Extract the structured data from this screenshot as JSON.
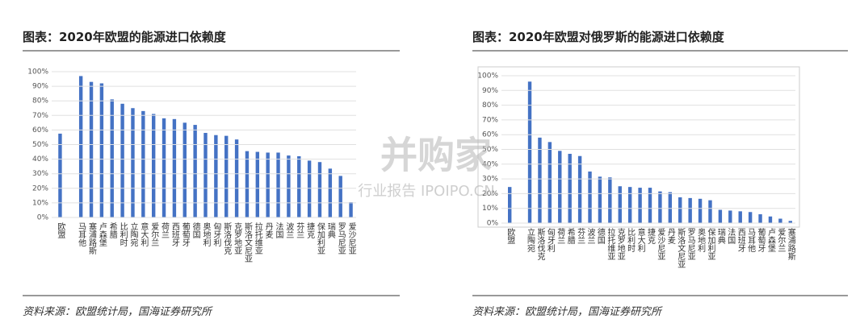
{
  "chart_data": [
    {
      "type": "bar",
      "title": "图表：2020年欧盟的能源进口依赖度",
      "source": "资料来源：欧盟统计局，国海证券研究所",
      "categories": [
        "欧盟",
        null,
        "马耳他",
        "塞浦路斯",
        "卢森堡",
        "希腊",
        "比利时",
        "立陶宛",
        "意大利",
        "爱尔兰",
        "荷兰",
        "西班牙",
        "葡萄牙",
        "德国",
        "奥地利",
        "匈牙利",
        "斯洛伐克",
        "克罗地亚",
        "斯洛文尼亚",
        "拉托维亚",
        "丹麦",
        "法国",
        "波兰",
        "芬兰",
        "捷克",
        "保加利亚",
        "瑞典",
        "罗马尼亚",
        "爱沙尼亚"
      ],
      "values": [
        57.5,
        null,
        97,
        93,
        92,
        81,
        78,
        75,
        73,
        71,
        68,
        67.5,
        65,
        63.5,
        58,
        56.5,
        56,
        53.5,
        45.5,
        45,
        44.5,
        44.5,
        42.5,
        42,
        39,
        38,
        33.5,
        28.5,
        10.5
      ],
      "color": "#4472c4",
      "ylim": [
        0,
        100
      ],
      "yticks": [
        {
          "value": 0,
          "label": "0%"
        },
        {
          "value": 10,
          "label": "10%"
        },
        {
          "value": 20,
          "label": "20%"
        },
        {
          "value": 30,
          "label": "30%"
        },
        {
          "value": 40,
          "label": "40%"
        },
        {
          "value": 50,
          "label": "50%"
        },
        {
          "value": 60,
          "label": "60%"
        },
        {
          "value": 70,
          "label": "70%"
        },
        {
          "value": 80,
          "label": "80%"
        },
        {
          "value": 90,
          "label": "90%"
        },
        {
          "value": 100,
          "label": "100%"
        }
      ],
      "grid": true,
      "frame": false
    },
    {
      "type": "bar",
      "title": "图表：2020年欧盟对俄罗斯的能源进口依赖度",
      "source": "资料来源：欧盟统计局，国海证券研究所",
      "categories": [
        "欧盟",
        null,
        "立陶宛",
        "斯洛伐克",
        "匈牙利",
        "荷兰",
        "希腊",
        "芬兰",
        "波兰",
        "德国",
        "拉托维亚",
        "克罗地亚",
        "比利时",
        "意大利",
        "捷克",
        "爱沙尼亚",
        "丹麦",
        "斯洛文尼亚",
        "罗马尼亚",
        "奥地利",
        "保加利亚",
        "瑞典",
        "法国",
        "西班牙",
        "马耳他",
        "葡萄牙",
        "卢森堡",
        "爱尔兰",
        "塞浦路斯"
      ],
      "values": [
        24.5,
        null,
        96,
        58,
        55,
        49,
        47,
        45.5,
        35,
        31.5,
        31,
        25,
        24.5,
        24,
        24,
        21.5,
        21,
        17.5,
        17,
        16.5,
        15.5,
        9,
        8.5,
        8,
        7.5,
        6,
        4.5,
        3,
        1.5
      ],
      "color": "#4472c4",
      "ylim": [
        0,
        100
      ],
      "yticks": [
        {
          "value": 0,
          "label": "0%"
        },
        {
          "value": 10,
          "label": "10%"
        },
        {
          "value": 20,
          "label": "20%"
        },
        {
          "value": 30,
          "label": "30%"
        },
        {
          "value": 40,
          "label": "40%"
        },
        {
          "value": 50,
          "label": "50%"
        },
        {
          "value": 60,
          "label": "60%"
        },
        {
          "value": 70,
          "label": "70%"
        },
        {
          "value": 80,
          "label": "80%"
        },
        {
          "value": 90,
          "label": "90%"
        },
        {
          "value": 100,
          "label": "100%"
        }
      ],
      "grid": true,
      "frame": true
    }
  ],
  "watermark": {
    "brand": "并购家",
    "tagline": "行业报告 IPOIPO.CN"
  }
}
